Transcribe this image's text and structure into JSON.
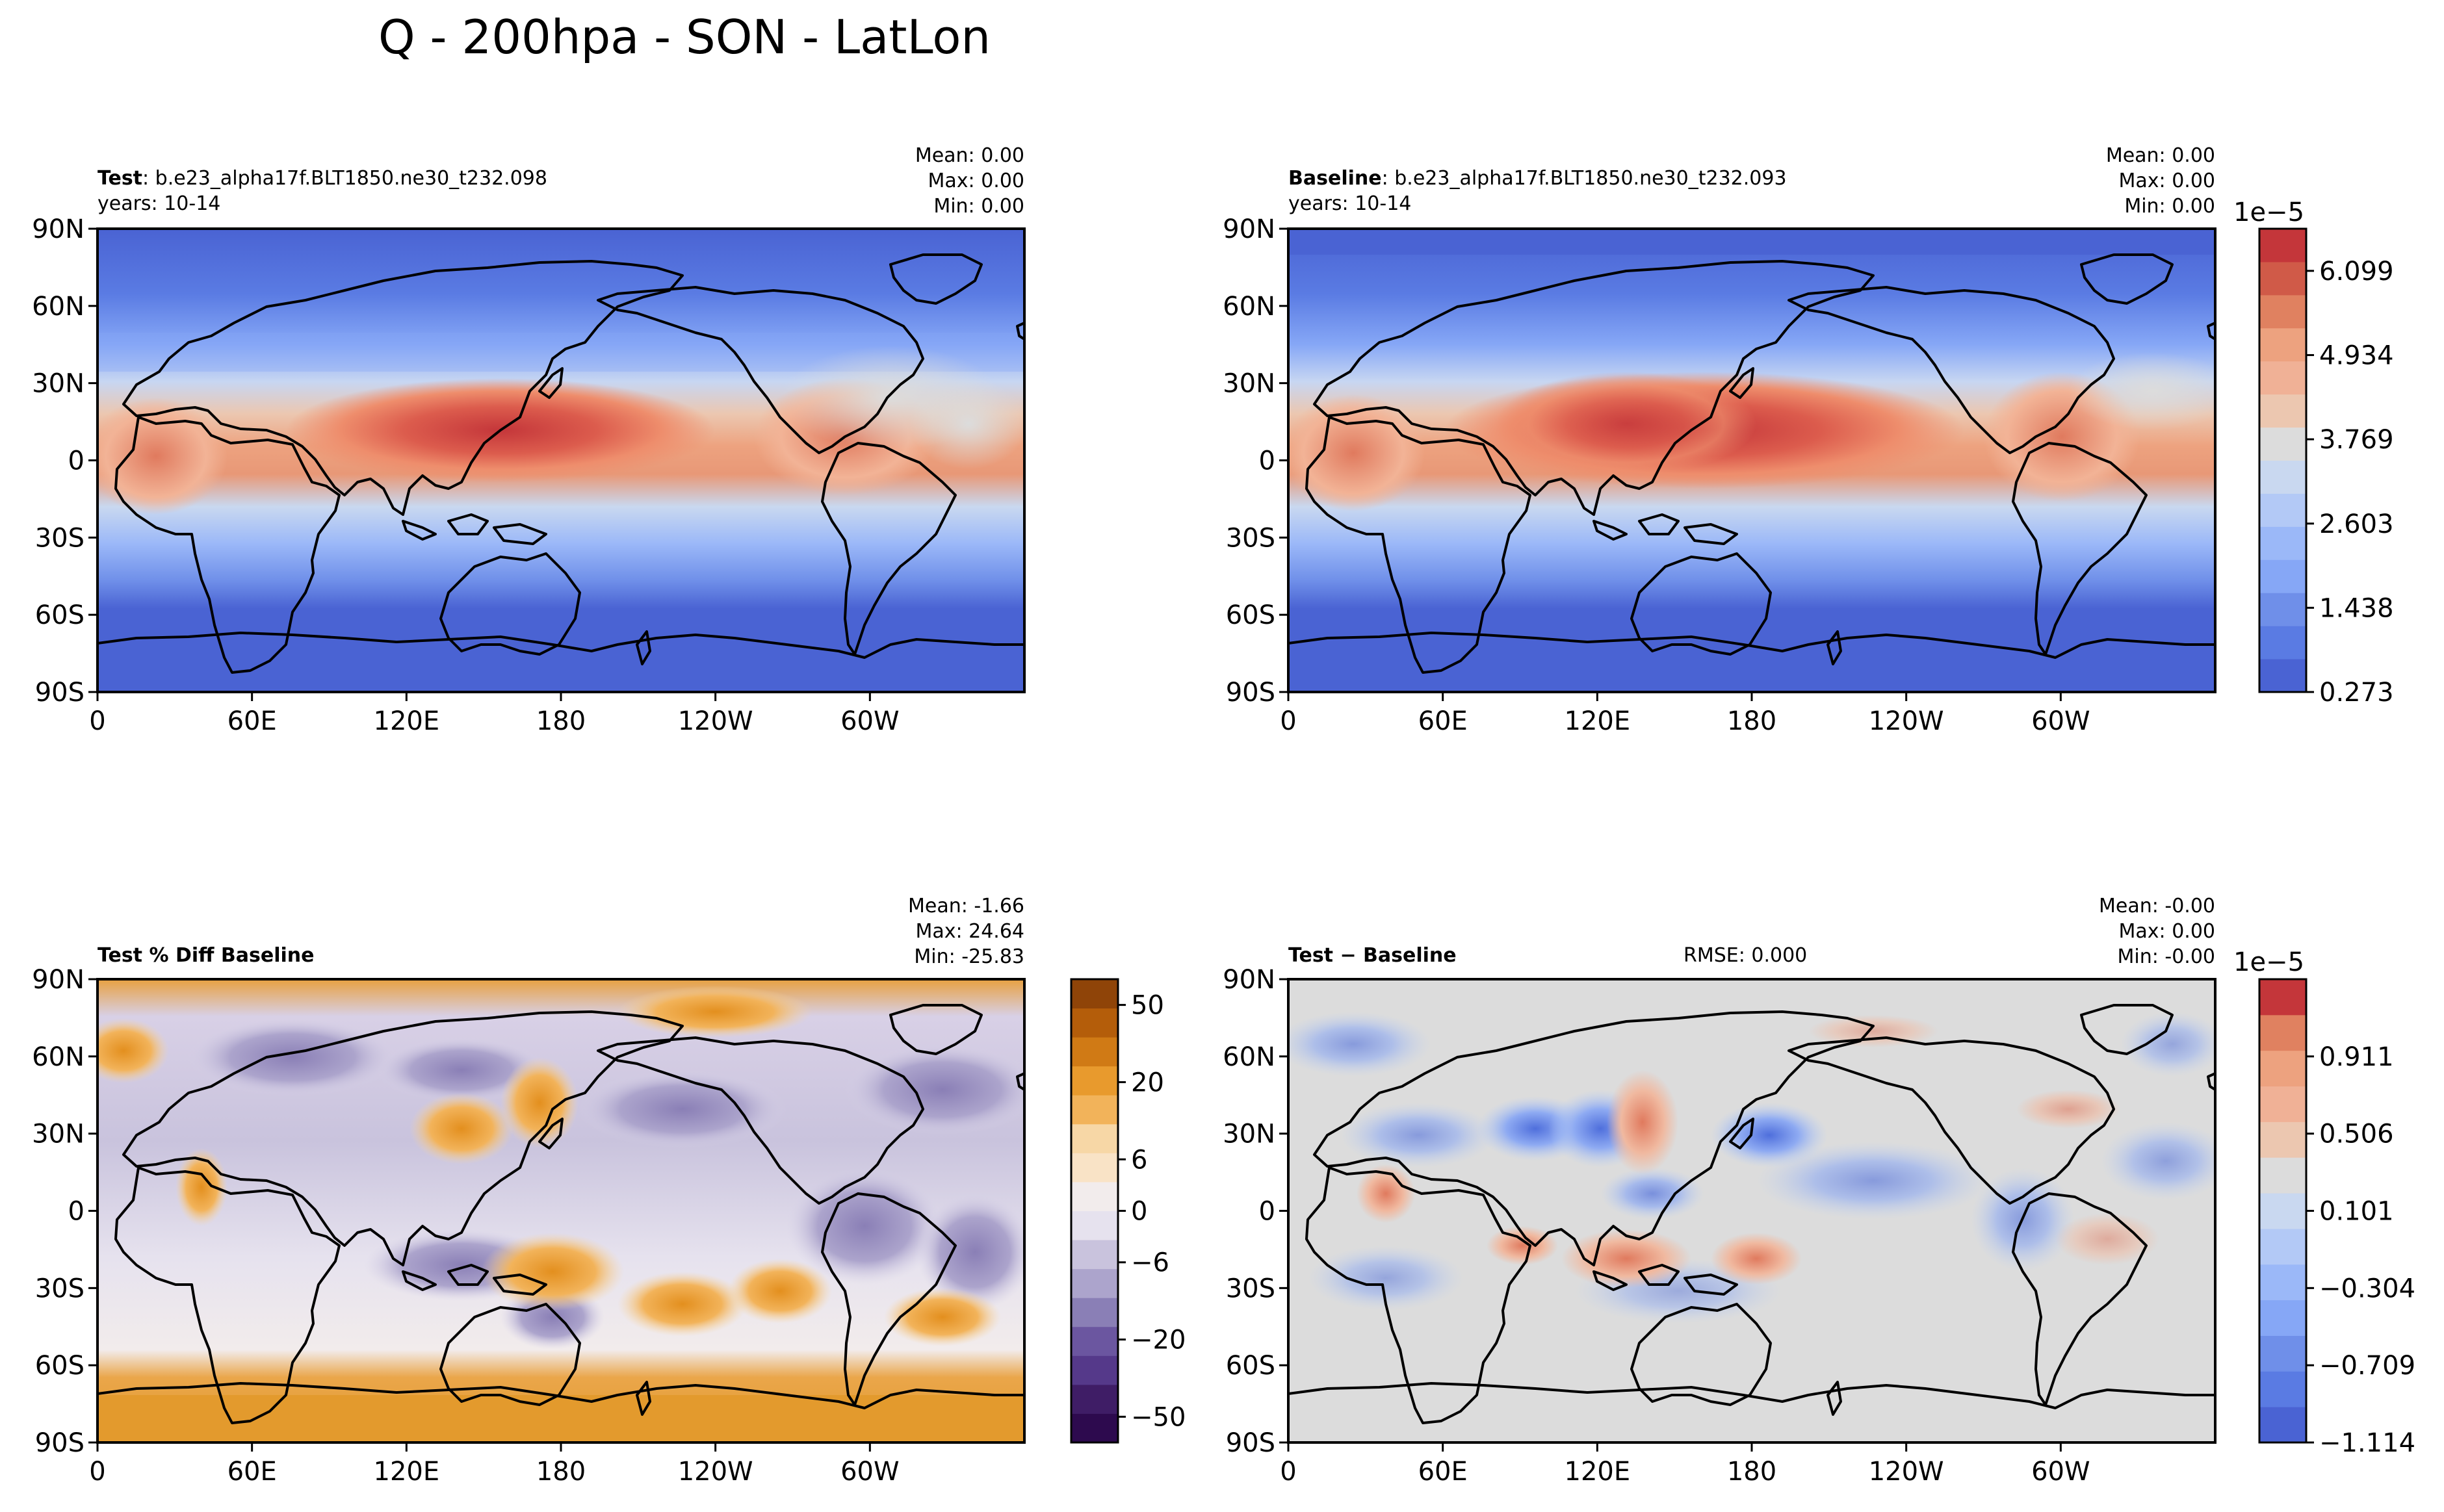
{
  "figure": {
    "suptitle": "Q - 200hpa - SON - LatLon"
  },
  "chart_data": [
    {
      "type": "heatmap",
      "panel": "top-left",
      "title_bold": "Test",
      "title_rest": ": b.e23_alpha17f.BLT1850.ne30_t232.098",
      "subtitle": "years: 10-14",
      "stats": [
        "Mean:  0.00",
        "Max:  0.00",
        "Min:  0.00"
      ],
      "xticks": [
        "0",
        "60E",
        "120E",
        "180",
        "120W",
        "60W"
      ],
      "yticks": [
        "90N",
        "60N",
        "30N",
        "0",
        "30S",
        "60S",
        "90S"
      ],
      "xlim": [
        0,
        360
      ],
      "ylim": [
        -90,
        90
      ],
      "colormap": "coolwarm",
      "field": "moisture"
    },
    {
      "type": "heatmap",
      "panel": "top-right",
      "title_bold": "Baseline",
      "title_rest": ": b.e23_alpha17f.BLT1850.ne30_t232.093",
      "subtitle": "years: 10-14",
      "stats": [
        "Mean:  0.00",
        "Max:  0.00",
        "Min:  0.00"
      ],
      "xticks": [
        "0",
        "60E",
        "120E",
        "180",
        "120W",
        "60W"
      ],
      "yticks": [
        "90N",
        "60N",
        "30N",
        "0",
        "30S",
        "60S",
        "90S"
      ],
      "xlim": [
        0,
        360
      ],
      "ylim": [
        -90,
        90
      ],
      "colormap": "coolwarm",
      "field": "moisture",
      "colorbar": {
        "multiplier": "1e−5",
        "ticks": [
          "6.099",
          "4.934",
          "3.769",
          "2.603",
          "1.438",
          "0.273"
        ],
        "range": [
          0.273,
          6.682
        ]
      }
    },
    {
      "type": "heatmap",
      "panel": "bottom-left",
      "title_bold": "Test % Diff Baseline",
      "title_rest": "",
      "subtitle": "",
      "stats": [
        "Mean: -1.66",
        "Max: 24.64",
        "Min: -25.83"
      ],
      "xticks": [
        "0",
        "60E",
        "120E",
        "180",
        "120W",
        "60W"
      ],
      "yticks": [
        "90N",
        "60N",
        "30N",
        "0",
        "30S",
        "60S",
        "90S"
      ],
      "xlim": [
        0,
        360
      ],
      "ylim": [
        -90,
        90
      ],
      "colormap": "PuOr_r",
      "field": "pctdiff",
      "colorbar": {
        "multiplier": "",
        "ticks": [
          "50",
          "20",
          "6",
          "0",
          "−6",
          "−20",
          "−50"
        ],
        "range": [
          -70,
          70
        ]
      }
    },
    {
      "type": "heatmap",
      "panel": "bottom-right",
      "title_bold": "Test − Baseline",
      "title_rest": "",
      "subtitle": "",
      "rmse": "RMSE: 0.000",
      "stats": [
        "Mean: -0.00",
        "Max:  0.00",
        "Min: -0.00"
      ],
      "xticks": [
        "0",
        "60E",
        "120E",
        "180",
        "120W",
        "60W"
      ],
      "yticks": [
        "90N",
        "60N",
        "30N",
        "0",
        "30S",
        "60S",
        "90S"
      ],
      "xlim": [
        0,
        360
      ],
      "ylim": [
        -90,
        90
      ],
      "colormap": "coolwarm",
      "field": "diff",
      "colorbar": {
        "multiplier": "1e−5",
        "ticks": [
          "0.911",
          "0.506",
          "0.101",
          "−0.304",
          "−0.709",
          "−1.114"
        ],
        "range": [
          -1.114,
          1.316
        ]
      }
    }
  ]
}
